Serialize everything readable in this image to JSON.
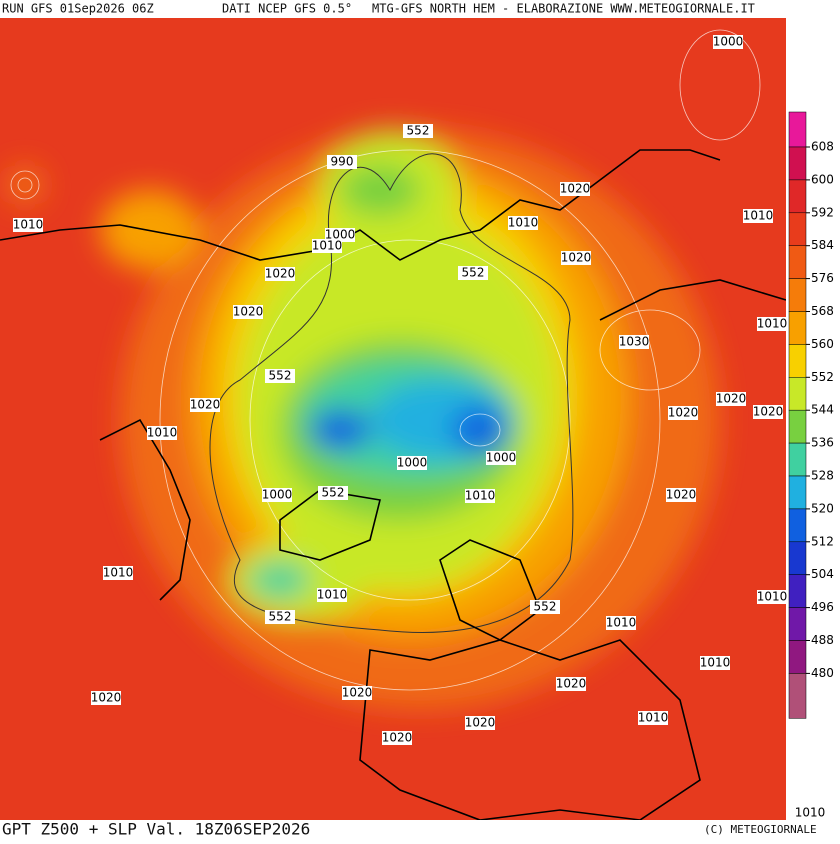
{
  "header": {
    "run": "RUN GFS 01Sep2026 06Z",
    "source": "DATI NCEP GFS 0.5°",
    "product": "MTG-GFS NORTH HEM - ELABORAZIONE WWW.METEOGIORNALE.IT"
  },
  "footer": {
    "title": "GPT Z500 + SLP Val. 18Z06SEP2026",
    "copyright": "(C) METEOGIORNALE"
  },
  "colorbar": {
    "ticks": [
      608,
      600,
      592,
      584,
      576,
      568,
      560,
      552,
      544,
      536,
      528,
      520,
      512,
      504,
      496,
      488,
      480
    ],
    "colors": [
      "#e8189a",
      "#d01050",
      "#e02828",
      "#e83c1c",
      "#f05a14",
      "#f57c0a",
      "#f8a000",
      "#f8d000",
      "#c8e828",
      "#78d040",
      "#40d0a0",
      "#20b0e0",
      "#1060e0",
      "#1838d0",
      "#4020c0",
      "#7018a8",
      "#901880",
      "#b05078"
    ]
  },
  "contour_labels": [
    1000,
    552,
    990,
    1020,
    1010,
    1010,
    1000,
    1010,
    1010,
    1020,
    552,
    1020,
    1020,
    1010,
    1030,
    552,
    1020,
    1020,
    1020,
    1020,
    1010,
    1000,
    1000,
    552,
    1000,
    1010,
    1020,
    1010,
    1010,
    552,
    552,
    1010,
    1010,
    1010,
    1020,
    1020,
    1020,
    1010,
    1020,
    1020,
    1010
  ]
}
